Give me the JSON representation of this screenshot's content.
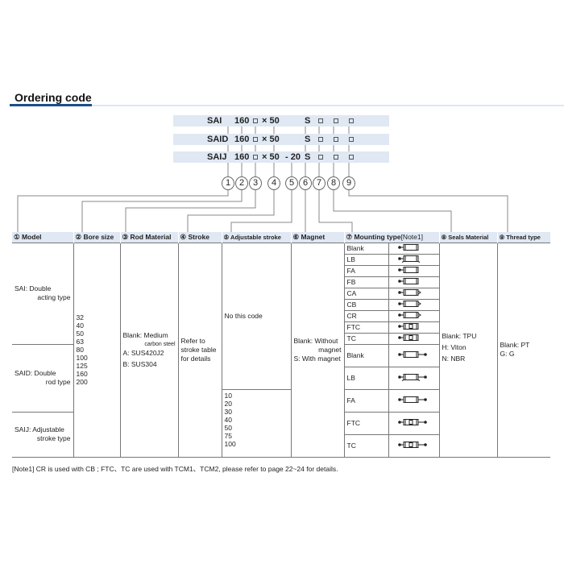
{
  "title": "Ordering code",
  "code_rows": [
    {
      "model": "SAI",
      "bore": "160",
      "stroke": "× 50",
      "adj": "",
      "magnet": "S"
    },
    {
      "model": "SAID",
      "bore": "160",
      "stroke": "× 50",
      "adj": "",
      "magnet": "S"
    },
    {
      "model": "SAIJ",
      "bore": "160",
      "stroke": "× 50",
      "adj": "- 20",
      "magnet": "S"
    }
  ],
  "circles": [
    "1",
    "2",
    "3",
    "4",
    "5",
    "6",
    "7",
    "8",
    "9"
  ],
  "headers": [
    "① Model",
    "② Bore size",
    "③ Rod Material",
    "④ Stroke",
    "⑤ Adjustable stroke",
    "⑥ Magnet",
    "⑦ Mounting type",
    "[Note1]",
    "⑧ Seals Material",
    "⑨ Thread type"
  ],
  "models": [
    {
      "l1": "SAI: Double",
      "l2": "acting type"
    },
    {
      "l1": "SAID: Double",
      "l2": "rod type"
    },
    {
      "l1": "SAIJ: Adjustable",
      "l2": "stroke type"
    }
  ],
  "bore_sizes": "32\n40\n50\n63\n80\n100\n125\n160\n200",
  "rod_material": {
    "l1": "Blank: Medium",
    "l2": "carbon steel",
    "l3": "A: SUS420J2",
    "l4": "B: SUS304"
  },
  "stroke": "Refer to\nstroke table\nfor details",
  "adjustable": {
    "none": "No this code",
    "values": "10\n20\n30\n40\n50\n75\n100"
  },
  "magnet": {
    "l1": "Blank: Without",
    "l2": "magnet",
    "l3": "S: With magnet"
  },
  "mounting_single": [
    {
      "code": "Blank",
      "icon": "cylinder-basic-icon"
    },
    {
      "code": "LB",
      "icon": "cylinder-foot-icon"
    },
    {
      "code": "FA",
      "icon": "cylinder-front-flange-icon"
    },
    {
      "code": "FB",
      "icon": "cylinder-rear-flange-icon"
    },
    {
      "code": "CA",
      "icon": "cylinder-single-clevis-icon"
    },
    {
      "code": "CB",
      "icon": "cylinder-double-clevis-icon"
    },
    {
      "code": "CR",
      "icon": "cylinder-clevis-bracket-icon"
    },
    {
      "code": "FTC",
      "icon": "cylinder-front-trunnion-icon"
    },
    {
      "code": "TC",
      "icon": "cylinder-middle-trunnion-icon"
    }
  ],
  "mounting_double": [
    {
      "code": "Blank",
      "icon": "double-rod-basic-icon"
    },
    {
      "code": "LB",
      "icon": "double-rod-foot-icon"
    },
    {
      "code": "FA",
      "icon": "double-rod-flange-icon"
    },
    {
      "code": "FTC",
      "icon": "double-rod-front-trunnion-icon"
    },
    {
      "code": "TC",
      "icon": "double-rod-middle-trunnion-icon"
    }
  ],
  "seals": {
    "l1": "Blank: TPU",
    "l2": "H: Viton",
    "l3": "N: NBR"
  },
  "thread": {
    "l1": "Blank: PT",
    "l2": "G: G"
  },
  "note": "[Note1] CR is used with CB ; FTC、TC are used with TCM1、TCM2, please refer to page 22~24 for details.",
  "colors": {
    "accent": "#1a4f8a",
    "band": "#dfe8f3"
  }
}
